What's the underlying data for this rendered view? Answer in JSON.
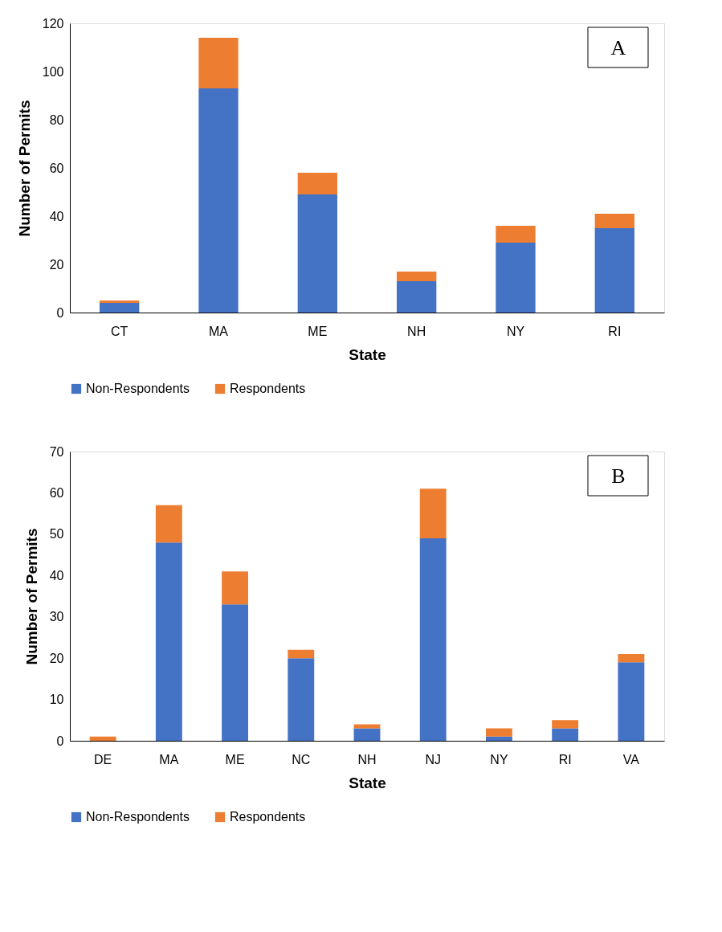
{
  "chart_data": [
    {
      "type": "bar",
      "stacked": true,
      "xlabel": "State",
      "ylabel": "Number of Permits",
      "categories": [
        "CT",
        "MA",
        "ME",
        "NH",
        "NY",
        "RI"
      ],
      "series": [
        {
          "name": "Non-Respondents",
          "color": "#4472c4",
          "values": [
            4,
            93,
            49,
            13,
            29,
            35
          ]
        },
        {
          "name": "Respondents",
          "color": "#ed7d31",
          "values": [
            1,
            21,
            9,
            4,
            7,
            6
          ]
        }
      ],
      "ylim": [
        0,
        120
      ],
      "yticks": [
        0,
        20,
        40,
        60,
        80,
        100,
        120
      ],
      "grid": false,
      "legend": "bottom",
      "annotations": [
        "A"
      ]
    },
    {
      "type": "bar",
      "stacked": true,
      "xlabel": "State",
      "ylabel": "Number of Permits",
      "categories": [
        "DE",
        "MA",
        "ME",
        "NC",
        "NH",
        "NJ",
        "NY",
        "RI",
        "VA"
      ],
      "series": [
        {
          "name": "Non-Respondents",
          "color": "#4472c4",
          "values": [
            0,
            48,
            33,
            20,
            3,
            49,
            1,
            3,
            19
          ]
        },
        {
          "name": "Respondents",
          "color": "#ed7d31",
          "values": [
            1,
            9,
            8,
            2,
            1,
            12,
            2,
            2,
            2
          ]
        }
      ],
      "ylim": [
        0,
        70
      ],
      "yticks": [
        0,
        10,
        20,
        30,
        40,
        50,
        60,
        70
      ],
      "grid": false,
      "legend": "bottom",
      "annotations": [
        "B"
      ]
    }
  ]
}
